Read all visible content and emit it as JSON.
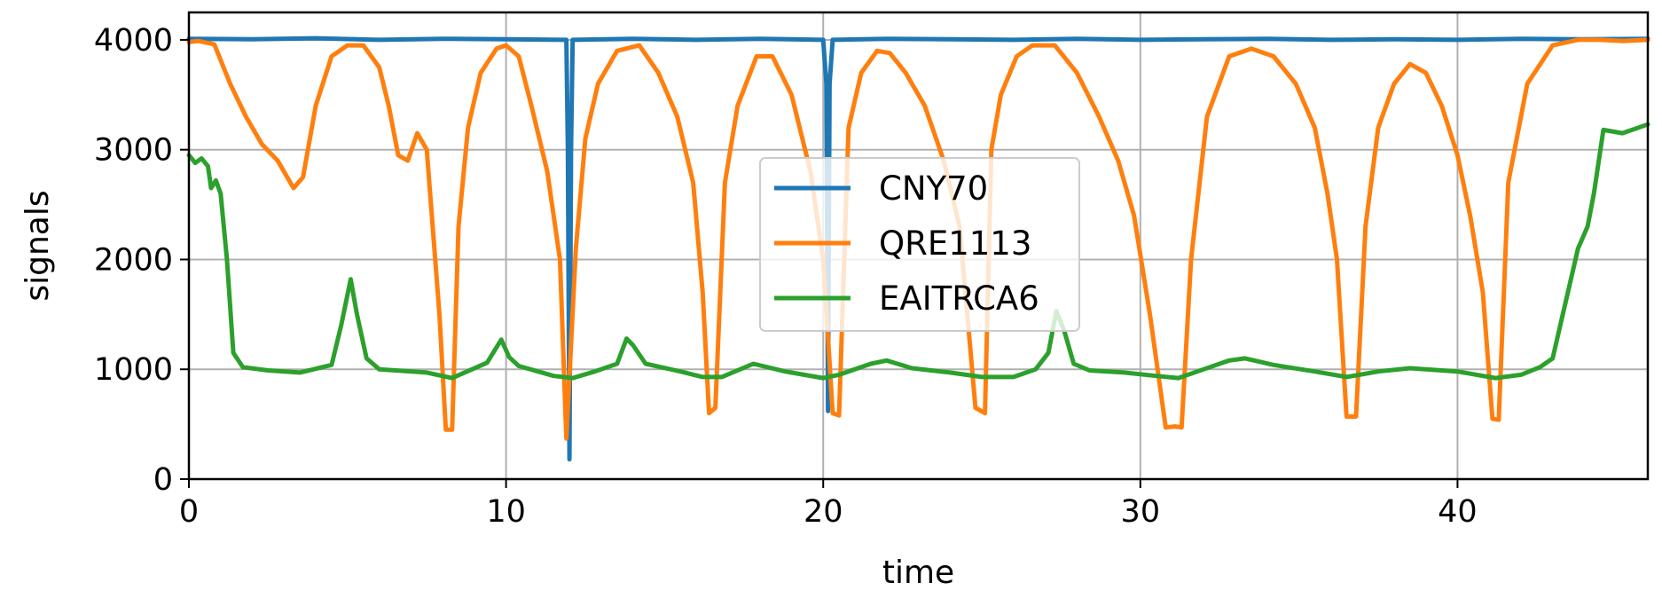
{
  "chart_data": {
    "type": "line",
    "title": "",
    "xlabel": "time",
    "ylabel": "signals",
    "xlim": [
      0,
      46
    ],
    "ylim": [
      0,
      4250
    ],
    "xticks": [
      0,
      10,
      20,
      30,
      40
    ],
    "yticks": [
      0,
      1000,
      2000,
      3000,
      4000
    ],
    "grid": true,
    "legend_position": "center",
    "series": [
      {
        "name": "CNY70",
        "color": "#1f77b4",
        "x": [
          0,
          2,
          4,
          6,
          8,
          10,
          11.9,
          11.95,
          12.0,
          12.05,
          12.1,
          14,
          16,
          18,
          20.0,
          20.1,
          20.15,
          20.2,
          20.3,
          22,
          24,
          26,
          28,
          30,
          32,
          34,
          36,
          38,
          40,
          42,
          44,
          46
        ],
        "values": [
          4010,
          4005,
          4015,
          4000,
          4010,
          4005,
          4000,
          3000,
          180,
          3000,
          4000,
          4010,
          4000,
          4010,
          4000,
          3600,
          620,
          3600,
          4000,
          4010,
          4005,
          4000,
          4010,
          4000,
          4005,
          4010,
          4000,
          4005,
          4000,
          4010,
          4005,
          4010
        ]
      },
      {
        "name": "QRE1113",
        "color": "#ff7f0e",
        "x": [
          0,
          0.3,
          0.8,
          1.3,
          1.8,
          2.3,
          2.8,
          3.3,
          3.6,
          4.0,
          4.5,
          5.0,
          5.5,
          6.0,
          6.3,
          6.6,
          6.9,
          7.2,
          7.5,
          7.9,
          8.1,
          8.3,
          8.5,
          8.8,
          9.2,
          9.7,
          10.0,
          10.4,
          10.8,
          11.3,
          11.7,
          11.9,
          12.2,
          12.5,
          12.9,
          13.5,
          14.2,
          14.8,
          15.4,
          15.9,
          16.2,
          16.4,
          16.6,
          16.9,
          17.3,
          17.9,
          18.4,
          19.0,
          19.6,
          20.0,
          20.3,
          20.5,
          20.8,
          21.2,
          21.7,
          22.1,
          22.6,
          23.2,
          23.8,
          24.3,
          24.8,
          25.1,
          25.3,
          25.6,
          26.1,
          26.6,
          27.3,
          28.0,
          28.7,
          29.3,
          29.8,
          30.3,
          30.8,
          31.1,
          31.3,
          31.6,
          32.1,
          32.8,
          33.5,
          34.2,
          34.9,
          35.5,
          35.9,
          36.2,
          36.5,
          36.8,
          37.1,
          37.5,
          38.0,
          38.5,
          39.0,
          39.5,
          40.0,
          40.4,
          40.8,
          41.1,
          41.3,
          41.6,
          42.2,
          43.0,
          43.8,
          44.5,
          45.2,
          46.0
        ],
        "values": [
          3980,
          3990,
          3960,
          3600,
          3300,
          3050,
          2900,
          2650,
          2750,
          3400,
          3850,
          3950,
          3950,
          3750,
          3400,
          2950,
          2900,
          3150,
          3000,
          1500,
          450,
          450,
          2300,
          3200,
          3700,
          3920,
          3950,
          3850,
          3400,
          2800,
          2000,
          370,
          2100,
          3100,
          3600,
          3900,
          3950,
          3700,
          3300,
          2700,
          1700,
          600,
          650,
          2700,
          3400,
          3850,
          3850,
          3500,
          2800,
          2000,
          600,
          580,
          3200,
          3700,
          3900,
          3880,
          3700,
          3400,
          2900,
          2300,
          650,
          600,
          3000,
          3500,
          3850,
          3950,
          3950,
          3700,
          3300,
          2900,
          2400,
          1500,
          470,
          480,
          470,
          2000,
          3300,
          3850,
          3920,
          3850,
          3600,
          3200,
          2600,
          2000,
          570,
          570,
          2300,
          3200,
          3600,
          3780,
          3700,
          3400,
          2950,
          2400,
          1700,
          550,
          540,
          2700,
          3600,
          3950,
          4000,
          4000,
          3990,
          4000
        ]
      },
      {
        "name": "EAITRCA6",
        "color": "#2ca02c",
        "x": [
          0,
          0.2,
          0.4,
          0.6,
          0.7,
          0.85,
          1.0,
          1.2,
          1.4,
          1.7,
          2.5,
          3.5,
          4.5,
          4.8,
          5.1,
          5.3,
          5.6,
          6.0,
          7.5,
          8.3,
          9.4,
          9.85,
          10.1,
          10.4,
          11.5,
          12.1,
          12.8,
          13.5,
          13.8,
          14.0,
          14.4,
          15.5,
          16.2,
          16.8,
          17.8,
          18.8,
          20.0,
          20.5,
          21.5,
          22.0,
          22.8,
          24.0,
          25.0,
          26.0,
          26.7,
          27.1,
          27.35,
          27.6,
          27.9,
          28.4,
          29.5,
          30.5,
          31.2,
          32.0,
          32.8,
          33.3,
          34.2,
          35.5,
          36.5,
          37.5,
          38.5,
          40.0,
          41.2,
          42.0,
          42.6,
          43.0,
          43.4,
          43.8,
          44.1,
          44.3,
          44.6,
          45.2,
          46.0
        ],
        "values": [
          2950,
          2880,
          2920,
          2850,
          2650,
          2720,
          2600,
          2000,
          1150,
          1020,
          990,
          970,
          1040,
          1400,
          1820,
          1500,
          1100,
          1000,
          970,
          920,
          1060,
          1270,
          1110,
          1030,
          940,
          920,
          980,
          1050,
          1280,
          1220,
          1050,
          980,
          930,
          930,
          1050,
          980,
          920,
          950,
          1050,
          1080,
          1010,
          970,
          930,
          930,
          1000,
          1150,
          1530,
          1350,
          1050,
          990,
          970,
          940,
          920,
          1000,
          1080,
          1100,
          1040,
          980,
          930,
          980,
          1010,
          980,
          920,
          950,
          1020,
          1100,
          1600,
          2100,
          2300,
          2600,
          3180,
          3150,
          3230
        ]
      }
    ]
  }
}
